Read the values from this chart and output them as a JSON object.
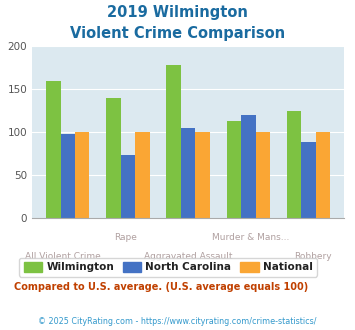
{
  "title_line1": "2019 Wilmington",
  "title_line2": "Violent Crime Comparison",
  "x_labels_top": [
    "",
    "Rape",
    "",
    "Murder & Mans...",
    ""
  ],
  "x_labels_bot": [
    "All Violent Crime",
    "",
    "Aggravated Assault",
    "",
    "Robbery"
  ],
  "wilmington": [
    160,
    140,
    178,
    113,
    125
  ],
  "north_carolina": [
    98,
    73,
    105,
    120,
    88
  ],
  "national": [
    100,
    100,
    100,
    100,
    100
  ],
  "bar_color_wilmington": "#7dc242",
  "bar_color_nc": "#4472c4",
  "bar_color_national": "#faa634",
  "bg_color": "#dce9f0",
  "title_color": "#1a6ba0",
  "xlabel_color": "#b0a0a0",
  "legend_label_color": "#222222",
  "footer_color": "#3399cc",
  "note_color": "#c04000",
  "ylim": [
    0,
    200
  ],
  "yticks": [
    0,
    50,
    100,
    150,
    200
  ],
  "legend_labels": [
    "Wilmington",
    "North Carolina",
    "National"
  ],
  "note_text": "Compared to U.S. average. (U.S. average equals 100)",
  "footer_text": "© 2025 CityRating.com - https://www.cityrating.com/crime-statistics/"
}
